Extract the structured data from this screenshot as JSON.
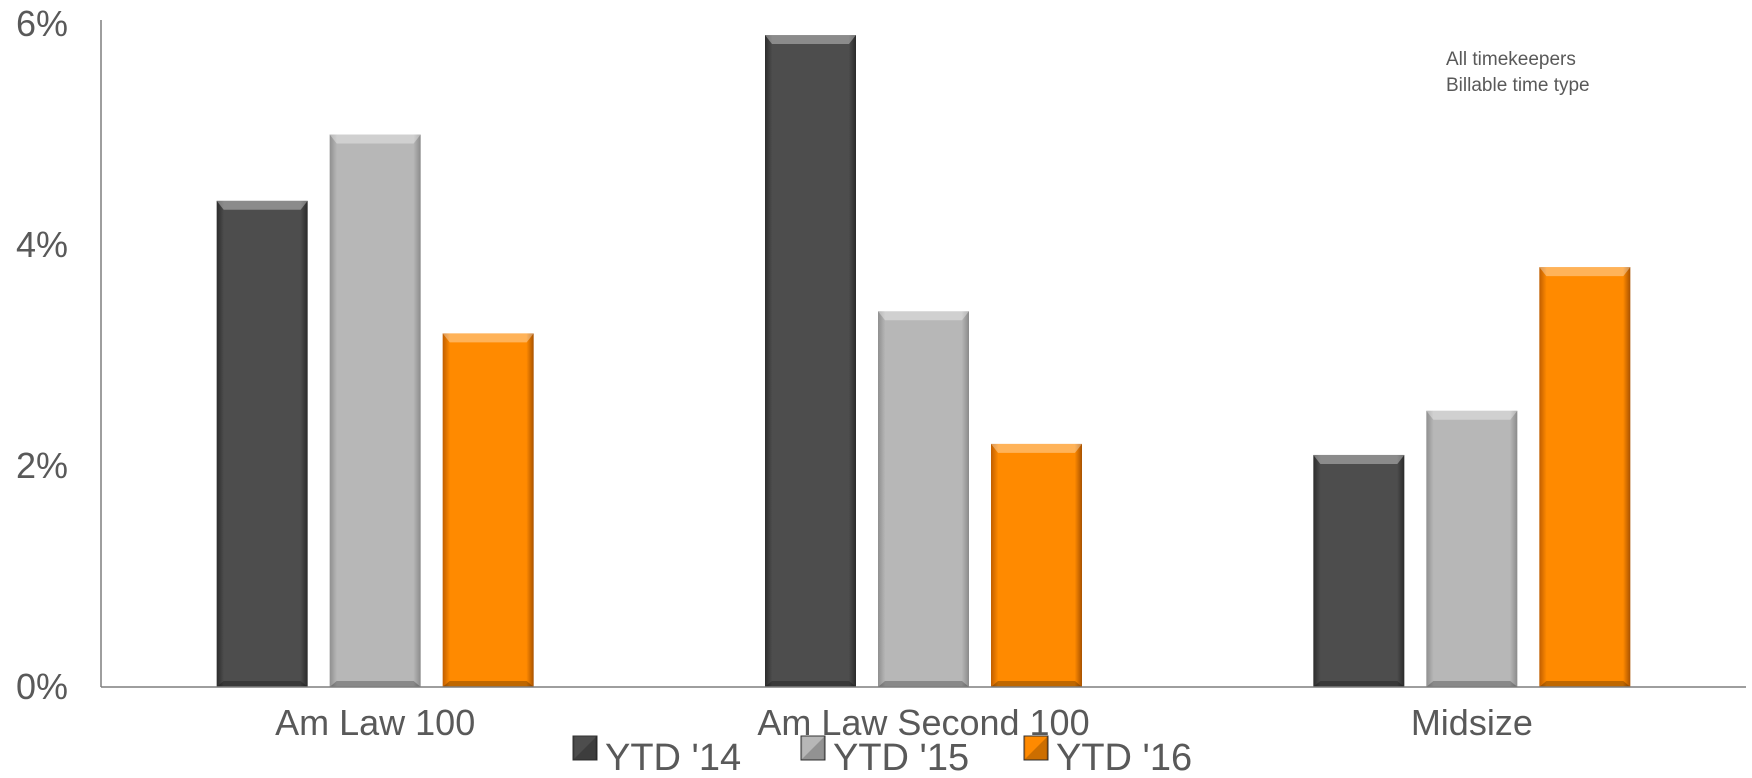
{
  "chart_data": {
    "type": "bar",
    "categories": [
      "Am Law 100",
      "Am Law Second 100",
      "Midsize"
    ],
    "series": [
      {
        "name": "YTD '14",
        "values": [
          4.4,
          5.9,
          2.1
        ],
        "color": "#4d4d4d"
      },
      {
        "name": "YTD '15",
        "values": [
          5.0,
          3.4,
          2.5
        ],
        "color": "#b7b7b7"
      },
      {
        "name": "YTD '16",
        "values": [
          3.2,
          2.2,
          3.8
        ],
        "color": "#ff8a00"
      }
    ],
    "ylim": [
      0,
      6
    ],
    "yticks": [
      0,
      2,
      4,
      6
    ],
    "ytick_labels": [
      "0%",
      "2%",
      "4%",
      "6%"
    ],
    "grid": false,
    "legend_position": "bottom",
    "annotation": [
      "All timekeepers",
      "Billable time type"
    ]
  }
}
